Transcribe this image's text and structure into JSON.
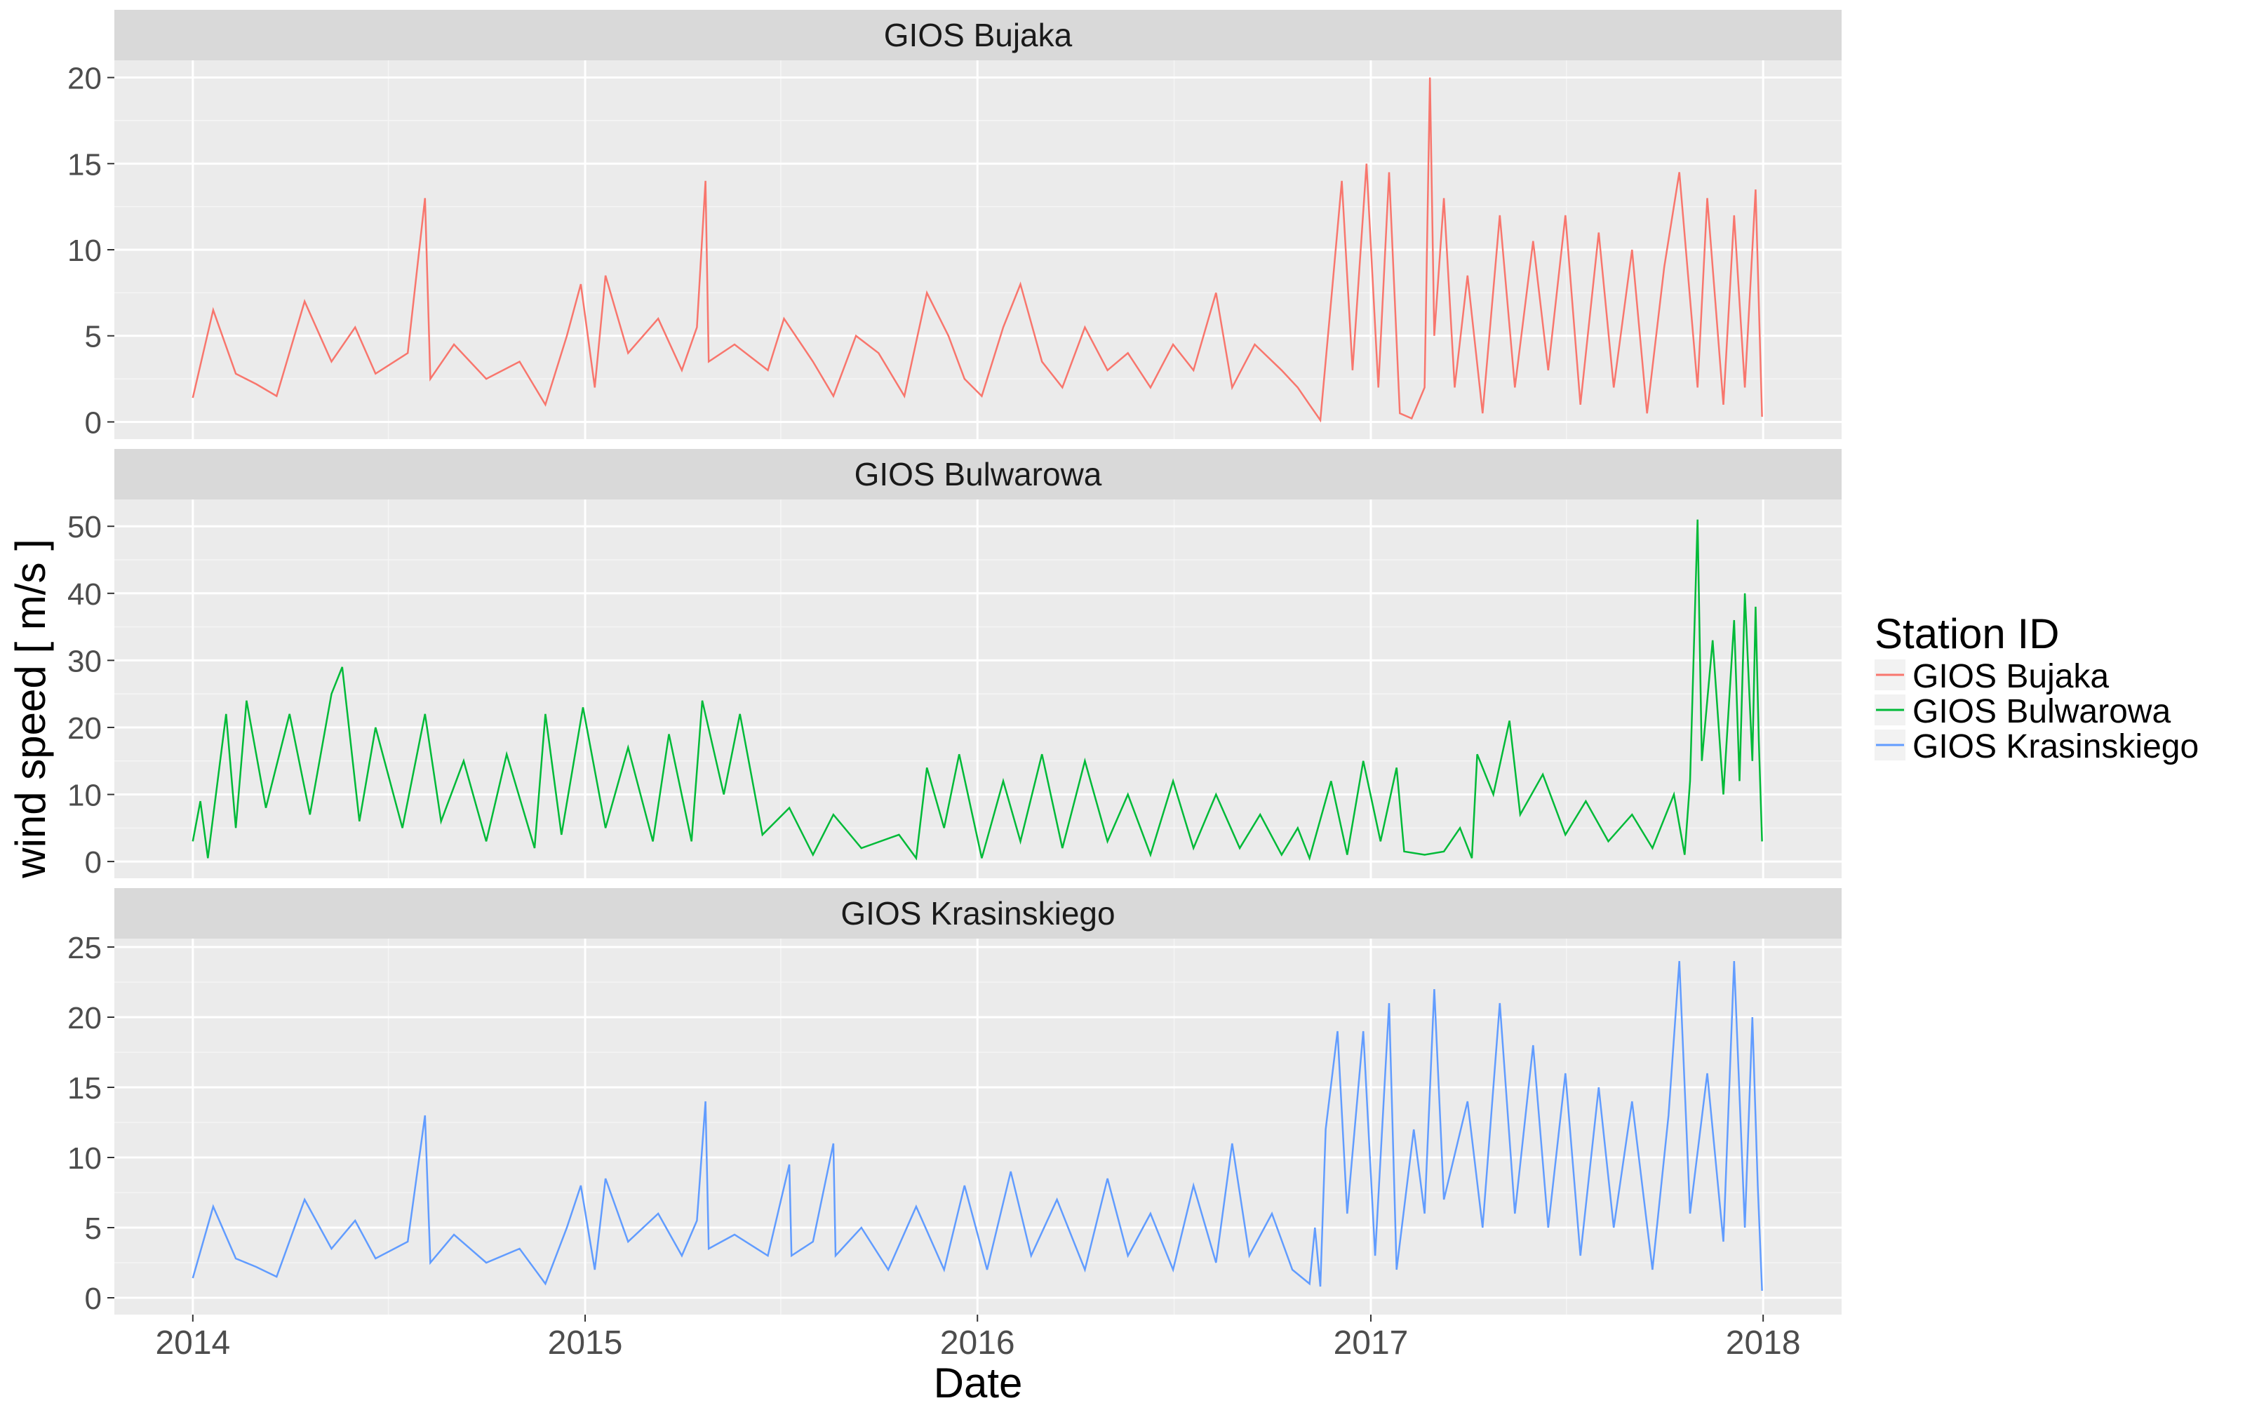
{
  "chart_data": {
    "type": "line",
    "xlabel": "Date",
    "ylabel": "wind speed [ m/s ]",
    "x_ticks": [
      "2014",
      "2015",
      "2016",
      "2017",
      "2018"
    ],
    "x_range": [
      "2013-10-20",
      "2018-03-15"
    ],
    "legend": {
      "title": "Station ID",
      "placement": "right",
      "entries": [
        "GIOS Bujaka",
        "GIOS Bulwarowa",
        "GIOS Krasinskiego"
      ]
    },
    "panels": [
      {
        "name": "GIOS Bujaka",
        "color": "#F8766D",
        "ylim": [
          -1,
          21
        ],
        "yticks": [
          "0",
          "5",
          "10",
          "15",
          "20"
        ],
        "points": [
          [
            "2014-01-01",
            1.4
          ],
          [
            "2014-01-20",
            6.5
          ],
          [
            "2014-02-10",
            2.8
          ],
          [
            "2014-03-01",
            2.2
          ],
          [
            "2014-03-20",
            1.5
          ],
          [
            "2014-04-15",
            7.0
          ],
          [
            "2014-05-10",
            3.5
          ],
          [
            "2014-06-01",
            5.5
          ],
          [
            "2014-06-20",
            2.8
          ],
          [
            "2014-07-20",
            4.0
          ],
          [
            "2014-08-05",
            13.0
          ],
          [
            "2014-08-10",
            2.5
          ],
          [
            "2014-09-01",
            4.5
          ],
          [
            "2014-10-01",
            2.5
          ],
          [
            "2014-11-01",
            3.5
          ],
          [
            "2014-11-25",
            1.0
          ],
          [
            "2014-12-15",
            5.0
          ],
          [
            "2014-12-28",
            8.0
          ],
          [
            "2015-01-10",
            2.0
          ],
          [
            "2015-01-20",
            8.5
          ],
          [
            "2015-02-10",
            4.0
          ],
          [
            "2015-03-10",
            6.0
          ],
          [
            "2015-04-01",
            3.0
          ],
          [
            "2015-04-15",
            5.5
          ],
          [
            "2015-04-23",
            14.0
          ],
          [
            "2015-04-26",
            3.5
          ],
          [
            "2015-05-20",
            4.5
          ],
          [
            "2015-06-20",
            3.0
          ],
          [
            "2015-07-05",
            6.0
          ],
          [
            "2015-08-01",
            3.5
          ],
          [
            "2015-08-20",
            1.5
          ],
          [
            "2015-09-10",
            5.0
          ],
          [
            "2015-10-01",
            4.0
          ],
          [
            "2015-10-25",
            1.5
          ],
          [
            "2015-11-15",
            7.5
          ],
          [
            "2015-12-05",
            5.0
          ],
          [
            "2015-12-20",
            2.5
          ],
          [
            "2016-01-05",
            1.5
          ],
          [
            "2016-01-25",
            5.5
          ],
          [
            "2016-02-10",
            8.0
          ],
          [
            "2016-03-01",
            3.5
          ],
          [
            "2016-03-20",
            2.0
          ],
          [
            "2016-04-10",
            5.5
          ],
          [
            "2016-05-01",
            3.0
          ],
          [
            "2016-05-20",
            4.0
          ],
          [
            "2016-06-10",
            2.0
          ],
          [
            "2016-07-01",
            4.5
          ],
          [
            "2016-07-20",
            3.0
          ],
          [
            "2016-08-10",
            7.5
          ],
          [
            "2016-08-25",
            2.0
          ],
          [
            "2016-09-15",
            4.5
          ],
          [
            "2016-10-10",
            3.0
          ],
          [
            "2016-10-25",
            2.0
          ],
          [
            "2016-11-05",
            1.0
          ],
          [
            "2016-11-15",
            0.1
          ],
          [
            "2016-11-25",
            7.0
          ],
          [
            "2016-12-05",
            14.0
          ],
          [
            "2016-12-15",
            3.0
          ],
          [
            "2016-12-28",
            15.0
          ],
          [
            "2017-01-08",
            2.0
          ],
          [
            "2017-01-18",
            14.5
          ],
          [
            "2017-01-28",
            0.5
          ],
          [
            "2017-02-08",
            0.2
          ],
          [
            "2017-02-20",
            2.0
          ],
          [
            "2017-02-25",
            20.0
          ],
          [
            "2017-03-01",
            5.0
          ],
          [
            "2017-03-10",
            13.0
          ],
          [
            "2017-03-20",
            2.0
          ],
          [
            "2017-04-01",
            8.5
          ],
          [
            "2017-04-15",
            0.5
          ],
          [
            "2017-05-01",
            12.0
          ],
          [
            "2017-05-15",
            2.0
          ],
          [
            "2017-06-01",
            10.5
          ],
          [
            "2017-06-15",
            3.0
          ],
          [
            "2017-07-01",
            12.0
          ],
          [
            "2017-07-15",
            1.0
          ],
          [
            "2017-08-01",
            11.0
          ],
          [
            "2017-08-15",
            2.0
          ],
          [
            "2017-09-01",
            10.0
          ],
          [
            "2017-09-15",
            0.5
          ],
          [
            "2017-10-01",
            9.0
          ],
          [
            "2017-10-15",
            14.5
          ],
          [
            "2017-11-01",
            2.0
          ],
          [
            "2017-11-10",
            13.0
          ],
          [
            "2017-11-25",
            1.0
          ],
          [
            "2017-12-05",
            12.0
          ],
          [
            "2017-12-15",
            2.0
          ],
          [
            "2017-12-25",
            13.5
          ],
          [
            "2017-12-31",
            0.3
          ]
        ]
      },
      {
        "name": "GIOS Bulwarowa",
        "color": "#00BA38",
        "ylim": [
          -2.5,
          54
        ],
        "yticks": [
          "0",
          "10",
          "20",
          "30",
          "40",
          "50"
        ],
        "points": [
          [
            "2014-01-01",
            3.0
          ],
          [
            "2014-01-08",
            9.0
          ],
          [
            "2014-01-15",
            0.5
          ],
          [
            "2014-02-01",
            22.0
          ],
          [
            "2014-02-10",
            5.0
          ],
          [
            "2014-02-20",
            24.0
          ],
          [
            "2014-03-10",
            8.0
          ],
          [
            "2014-04-01",
            22.0
          ],
          [
            "2014-04-20",
            7.0
          ],
          [
            "2014-05-10",
            25.0
          ],
          [
            "2014-05-20",
            29.0
          ],
          [
            "2014-06-05",
            6.0
          ],
          [
            "2014-06-20",
            20.0
          ],
          [
            "2014-07-15",
            5.0
          ],
          [
            "2014-08-05",
            22.0
          ],
          [
            "2014-08-20",
            6.0
          ],
          [
            "2014-09-10",
            15.0
          ],
          [
            "2014-10-01",
            3.0
          ],
          [
            "2014-10-20",
            16.0
          ],
          [
            "2014-11-15",
            2.0
          ],
          [
            "2014-11-25",
            22.0
          ],
          [
            "2014-12-10",
            4.0
          ],
          [
            "2014-12-30",
            23.0
          ],
          [
            "2015-01-20",
            5.0
          ],
          [
            "2015-02-10",
            17.0
          ],
          [
            "2015-03-05",
            3.0
          ],
          [
            "2015-03-20",
            19.0
          ],
          [
            "2015-04-10",
            3.0
          ],
          [
            "2015-04-20",
            24.0
          ],
          [
            "2015-05-10",
            10.0
          ],
          [
            "2015-05-25",
            22.0
          ],
          [
            "2015-06-15",
            4.0
          ],
          [
            "2015-07-10",
            8.0
          ],
          [
            "2015-08-01",
            1.0
          ],
          [
            "2015-08-20",
            7.0
          ],
          [
            "2015-09-15",
            2.0
          ],
          [
            "2015-10-20",
            4.0
          ],
          [
            "2015-11-05",
            0.5
          ],
          [
            "2015-11-15",
            14.0
          ],
          [
            "2015-12-01",
            5.0
          ],
          [
            "2015-12-15",
            16.0
          ],
          [
            "2016-01-05",
            0.5
          ],
          [
            "2016-01-25",
            12.0
          ],
          [
            "2016-02-10",
            3.0
          ],
          [
            "2016-03-01",
            16.0
          ],
          [
            "2016-03-20",
            2.0
          ],
          [
            "2016-04-10",
            15.0
          ],
          [
            "2016-05-01",
            3.0
          ],
          [
            "2016-05-20",
            10.0
          ],
          [
            "2016-06-10",
            1.0
          ],
          [
            "2016-07-01",
            12.0
          ],
          [
            "2016-07-20",
            2.0
          ],
          [
            "2016-08-10",
            10.0
          ],
          [
            "2016-09-01",
            2.0
          ],
          [
            "2016-09-20",
            7.0
          ],
          [
            "2016-10-10",
            1.0
          ],
          [
            "2016-10-25",
            5.0
          ],
          [
            "2016-11-05",
            0.5
          ],
          [
            "2016-11-25",
            12.0
          ],
          [
            "2016-12-10",
            1.0
          ],
          [
            "2016-12-25",
            15.0
          ],
          [
            "2017-01-10",
            3.0
          ],
          [
            "2017-01-25",
            14.0
          ],
          [
            "2017-02-01",
            1.5
          ],
          [
            "2017-02-20",
            1.0
          ],
          [
            "2017-03-10",
            1.5
          ],
          [
            "2017-03-25",
            5.0
          ],
          [
            "2017-04-05",
            0.5
          ],
          [
            "2017-04-10",
            16.0
          ],
          [
            "2017-04-25",
            10.0
          ],
          [
            "2017-05-10",
            21.0
          ],
          [
            "2017-05-20",
            7.0
          ],
          [
            "2017-06-10",
            13.0
          ],
          [
            "2017-07-01",
            4.0
          ],
          [
            "2017-07-20",
            9.0
          ],
          [
            "2017-08-10",
            3.0
          ],
          [
            "2017-09-01",
            7.0
          ],
          [
            "2017-09-20",
            2.0
          ],
          [
            "2017-10-10",
            10.0
          ],
          [
            "2017-10-20",
            1.0
          ],
          [
            "2017-10-25",
            12.0
          ],
          [
            "2017-11-01",
            51.0
          ],
          [
            "2017-11-05",
            15.0
          ],
          [
            "2017-11-15",
            33.0
          ],
          [
            "2017-11-25",
            10.0
          ],
          [
            "2017-12-05",
            36.0
          ],
          [
            "2017-12-10",
            12.0
          ],
          [
            "2017-12-15",
            40.0
          ],
          [
            "2017-12-22",
            15.0
          ],
          [
            "2017-12-25",
            38.0
          ],
          [
            "2017-12-28",
            18.0
          ],
          [
            "2017-12-31",
            3.0
          ]
        ]
      },
      {
        "name": "GIOS Krasinskiego",
        "color": "#619CFF",
        "ylim": [
          -1.2,
          25.6
        ],
        "yticks": [
          "0",
          "5",
          "10",
          "15",
          "20",
          "25"
        ],
        "points": [
          [
            "2014-01-01",
            1.4
          ],
          [
            "2014-01-20",
            6.5
          ],
          [
            "2014-02-10",
            2.8
          ],
          [
            "2014-03-01",
            2.2
          ],
          [
            "2014-03-20",
            1.5
          ],
          [
            "2014-04-15",
            7.0
          ],
          [
            "2014-05-10",
            3.5
          ],
          [
            "2014-06-01",
            5.5
          ],
          [
            "2014-06-20",
            2.8
          ],
          [
            "2014-07-20",
            4.0
          ],
          [
            "2014-08-05",
            13.0
          ],
          [
            "2014-08-10",
            2.5
          ],
          [
            "2014-09-01",
            4.5
          ],
          [
            "2014-10-01",
            2.5
          ],
          [
            "2014-11-01",
            3.5
          ],
          [
            "2014-11-25",
            1.0
          ],
          [
            "2014-12-15",
            5.0
          ],
          [
            "2014-12-28",
            8.0
          ],
          [
            "2015-01-10",
            2.0
          ],
          [
            "2015-01-20",
            8.5
          ],
          [
            "2015-02-10",
            4.0
          ],
          [
            "2015-03-10",
            6.0
          ],
          [
            "2015-04-01",
            3.0
          ],
          [
            "2015-04-15",
            5.5
          ],
          [
            "2015-04-23",
            14.0
          ],
          [
            "2015-04-26",
            3.5
          ],
          [
            "2015-05-20",
            4.5
          ],
          [
            "2015-06-20",
            3.0
          ],
          [
            "2015-07-10",
            9.5
          ],
          [
            "2015-07-12",
            3.0
          ],
          [
            "2015-08-01",
            4.0
          ],
          [
            "2015-08-20",
            11.0
          ],
          [
            "2015-08-22",
            3.0
          ],
          [
            "2015-09-15",
            5.0
          ],
          [
            "2015-10-10",
            2.0
          ],
          [
            "2015-11-05",
            6.5
          ],
          [
            "2015-12-01",
            2.0
          ],
          [
            "2015-12-20",
            8.0
          ],
          [
            "2016-01-10",
            2.0
          ],
          [
            "2016-02-01",
            9.0
          ],
          [
            "2016-02-20",
            3.0
          ],
          [
            "2016-03-15",
            7.0
          ],
          [
            "2016-04-10",
            2.0
          ],
          [
            "2016-05-01",
            8.5
          ],
          [
            "2016-05-20",
            3.0
          ],
          [
            "2016-06-10",
            6.0
          ],
          [
            "2016-07-01",
            2.0
          ],
          [
            "2016-07-20",
            8.0
          ],
          [
            "2016-08-10",
            2.5
          ],
          [
            "2016-08-25",
            11.0
          ],
          [
            "2016-09-10",
            3.0
          ],
          [
            "2016-10-01",
            6.0
          ],
          [
            "2016-10-20",
            2.0
          ],
          [
            "2016-11-05",
            1.0
          ],
          [
            "2016-11-10",
            5.0
          ],
          [
            "2016-11-15",
            0.8
          ],
          [
            "2016-11-20",
            12.0
          ],
          [
            "2016-12-01",
            19.0
          ],
          [
            "2016-12-10",
            6.0
          ],
          [
            "2016-12-25",
            19.0
          ],
          [
            "2017-01-05",
            3.0
          ],
          [
            "2017-01-18",
            21.0
          ],
          [
            "2017-01-25",
            2.0
          ],
          [
            "2017-02-10",
            12.0
          ],
          [
            "2017-02-20",
            6.0
          ],
          [
            "2017-03-01",
            22.0
          ],
          [
            "2017-03-10",
            7.0
          ],
          [
            "2017-04-01",
            14.0
          ],
          [
            "2017-04-15",
            5.0
          ],
          [
            "2017-05-01",
            21.0
          ],
          [
            "2017-05-15",
            6.0
          ],
          [
            "2017-06-01",
            18.0
          ],
          [
            "2017-06-15",
            5.0
          ],
          [
            "2017-07-01",
            16.0
          ],
          [
            "2017-07-15",
            3.0
          ],
          [
            "2017-08-01",
            15.0
          ],
          [
            "2017-08-15",
            5.0
          ],
          [
            "2017-09-01",
            14.0
          ],
          [
            "2017-09-20",
            2.0
          ],
          [
            "2017-10-05",
            13.0
          ],
          [
            "2017-10-15",
            24.0
          ],
          [
            "2017-10-25",
            6.0
          ],
          [
            "2017-11-10",
            16.0
          ],
          [
            "2017-11-25",
            4.0
          ],
          [
            "2017-12-05",
            24.0
          ],
          [
            "2017-12-15",
            5.0
          ],
          [
            "2017-12-22",
            20.0
          ],
          [
            "2017-12-27",
            8.0
          ],
          [
            "2017-12-31",
            0.5
          ]
        ]
      }
    ]
  }
}
